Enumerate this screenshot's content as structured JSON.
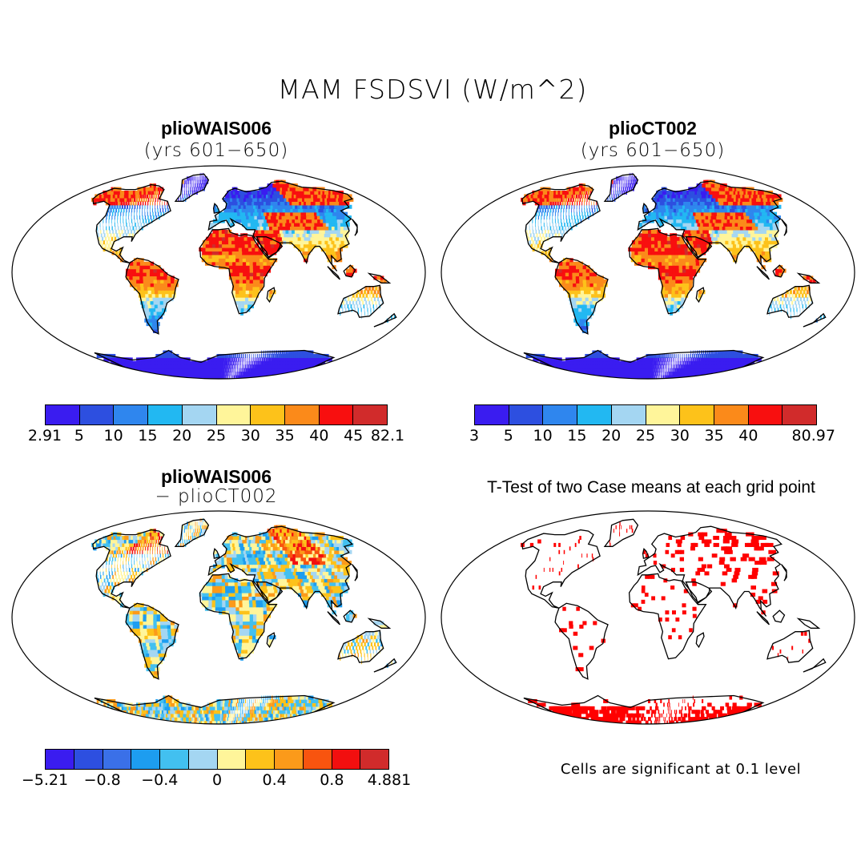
{
  "title": "MAM FSDSVI (W/m^2)",
  "panels": {
    "top_left": {
      "title": "plioWAIS006",
      "subtitle": "(yrs 601−650)",
      "colorbar": {
        "colors": [
          "#3a1cf0",
          "#2d4fe0",
          "#2f86ee",
          "#22b8f2",
          "#a4d6f2",
          "#fff59a",
          "#fdc21a",
          "#fb8a1a",
          "#f80f0f",
          "#d12b2b"
        ],
        "labels": [
          "2.91",
          "5",
          "10",
          "15",
          "20",
          "25",
          "30",
          "35",
          "40",
          "45",
          "82.1"
        ]
      }
    },
    "top_right": {
      "title": "plioCT002",
      "subtitle": "(yrs 601−650)",
      "colorbar": {
        "colors": [
          "#3a1cf0",
          "#2d4fe0",
          "#2f86ee",
          "#22b8f2",
          "#a4d6f2",
          "#fff59a",
          "#fdc21a",
          "#fb8a1a",
          "#f80f0f",
          "#d12b2b"
        ],
        "labels": [
          "3",
          "5",
          "10",
          "15",
          "20",
          "25",
          "30",
          "35",
          "40",
          "80.97"
        ]
      }
    },
    "bottom_left": {
      "title": "plioWAIS006",
      "subtitle": "− plioCT002",
      "colorbar": {
        "colors": [
          "#3a1cf0",
          "#2d4fe0",
          "#3a70e8",
          "#1d9df0",
          "#42c0f0",
          "#a4d6f2",
          "#fff59a",
          "#fdc21a",
          "#fb9a1a",
          "#f8540f",
          "#f20f0f",
          "#d12b2b"
        ],
        "labels": [
          "−5.21",
          "−0.8",
          "−0.4",
          "0",
          "0.4",
          "0.8",
          "4.881"
        ]
      }
    },
    "bottom_right": {
      "title": "T-Test of two Case means at each grid point",
      "note": "Cells are significant at 0.1 level",
      "significance_color": "#ff0000"
    }
  }
}
